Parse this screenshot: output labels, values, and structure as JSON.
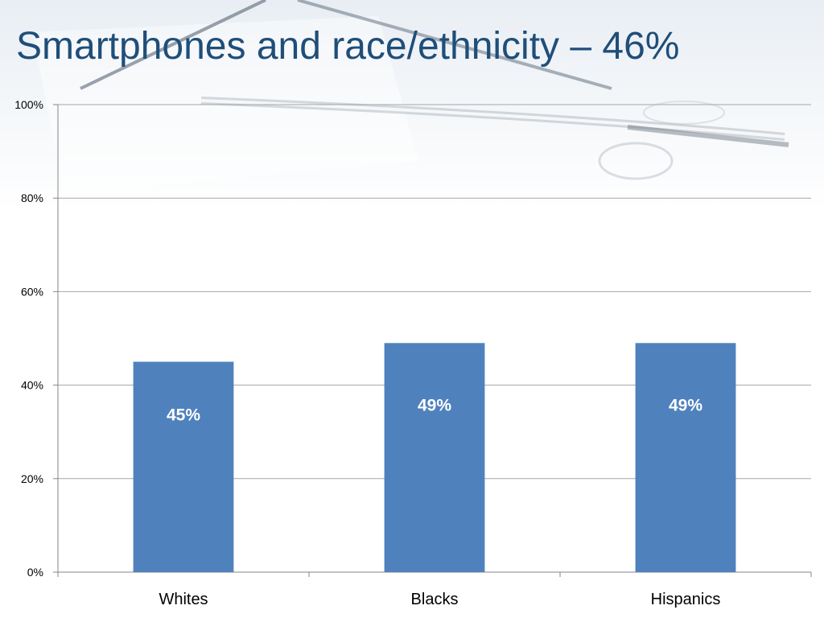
{
  "slide": {
    "title": "Smartphones and race/ethnicity – 46%"
  },
  "colors": {
    "bar": "#4f81bd",
    "title": "#1f4e79",
    "grid": "#a6a6a6"
  },
  "chart_data": {
    "type": "bar",
    "categories": [
      "Whites",
      "Blacks",
      "Hispanics"
    ],
    "values": [
      45,
      49,
      49
    ],
    "data_labels": [
      "45%",
      "49%",
      "49%"
    ],
    "ylim": [
      0,
      100
    ],
    "yticks": [
      0,
      20,
      40,
      60,
      80,
      100
    ],
    "ytick_labels": [
      "0%",
      "20%",
      "40%",
      "60%",
      "80%",
      "100%"
    ],
    "grid": true,
    "legend": "none",
    "xlabel": "",
    "ylabel": ""
  }
}
